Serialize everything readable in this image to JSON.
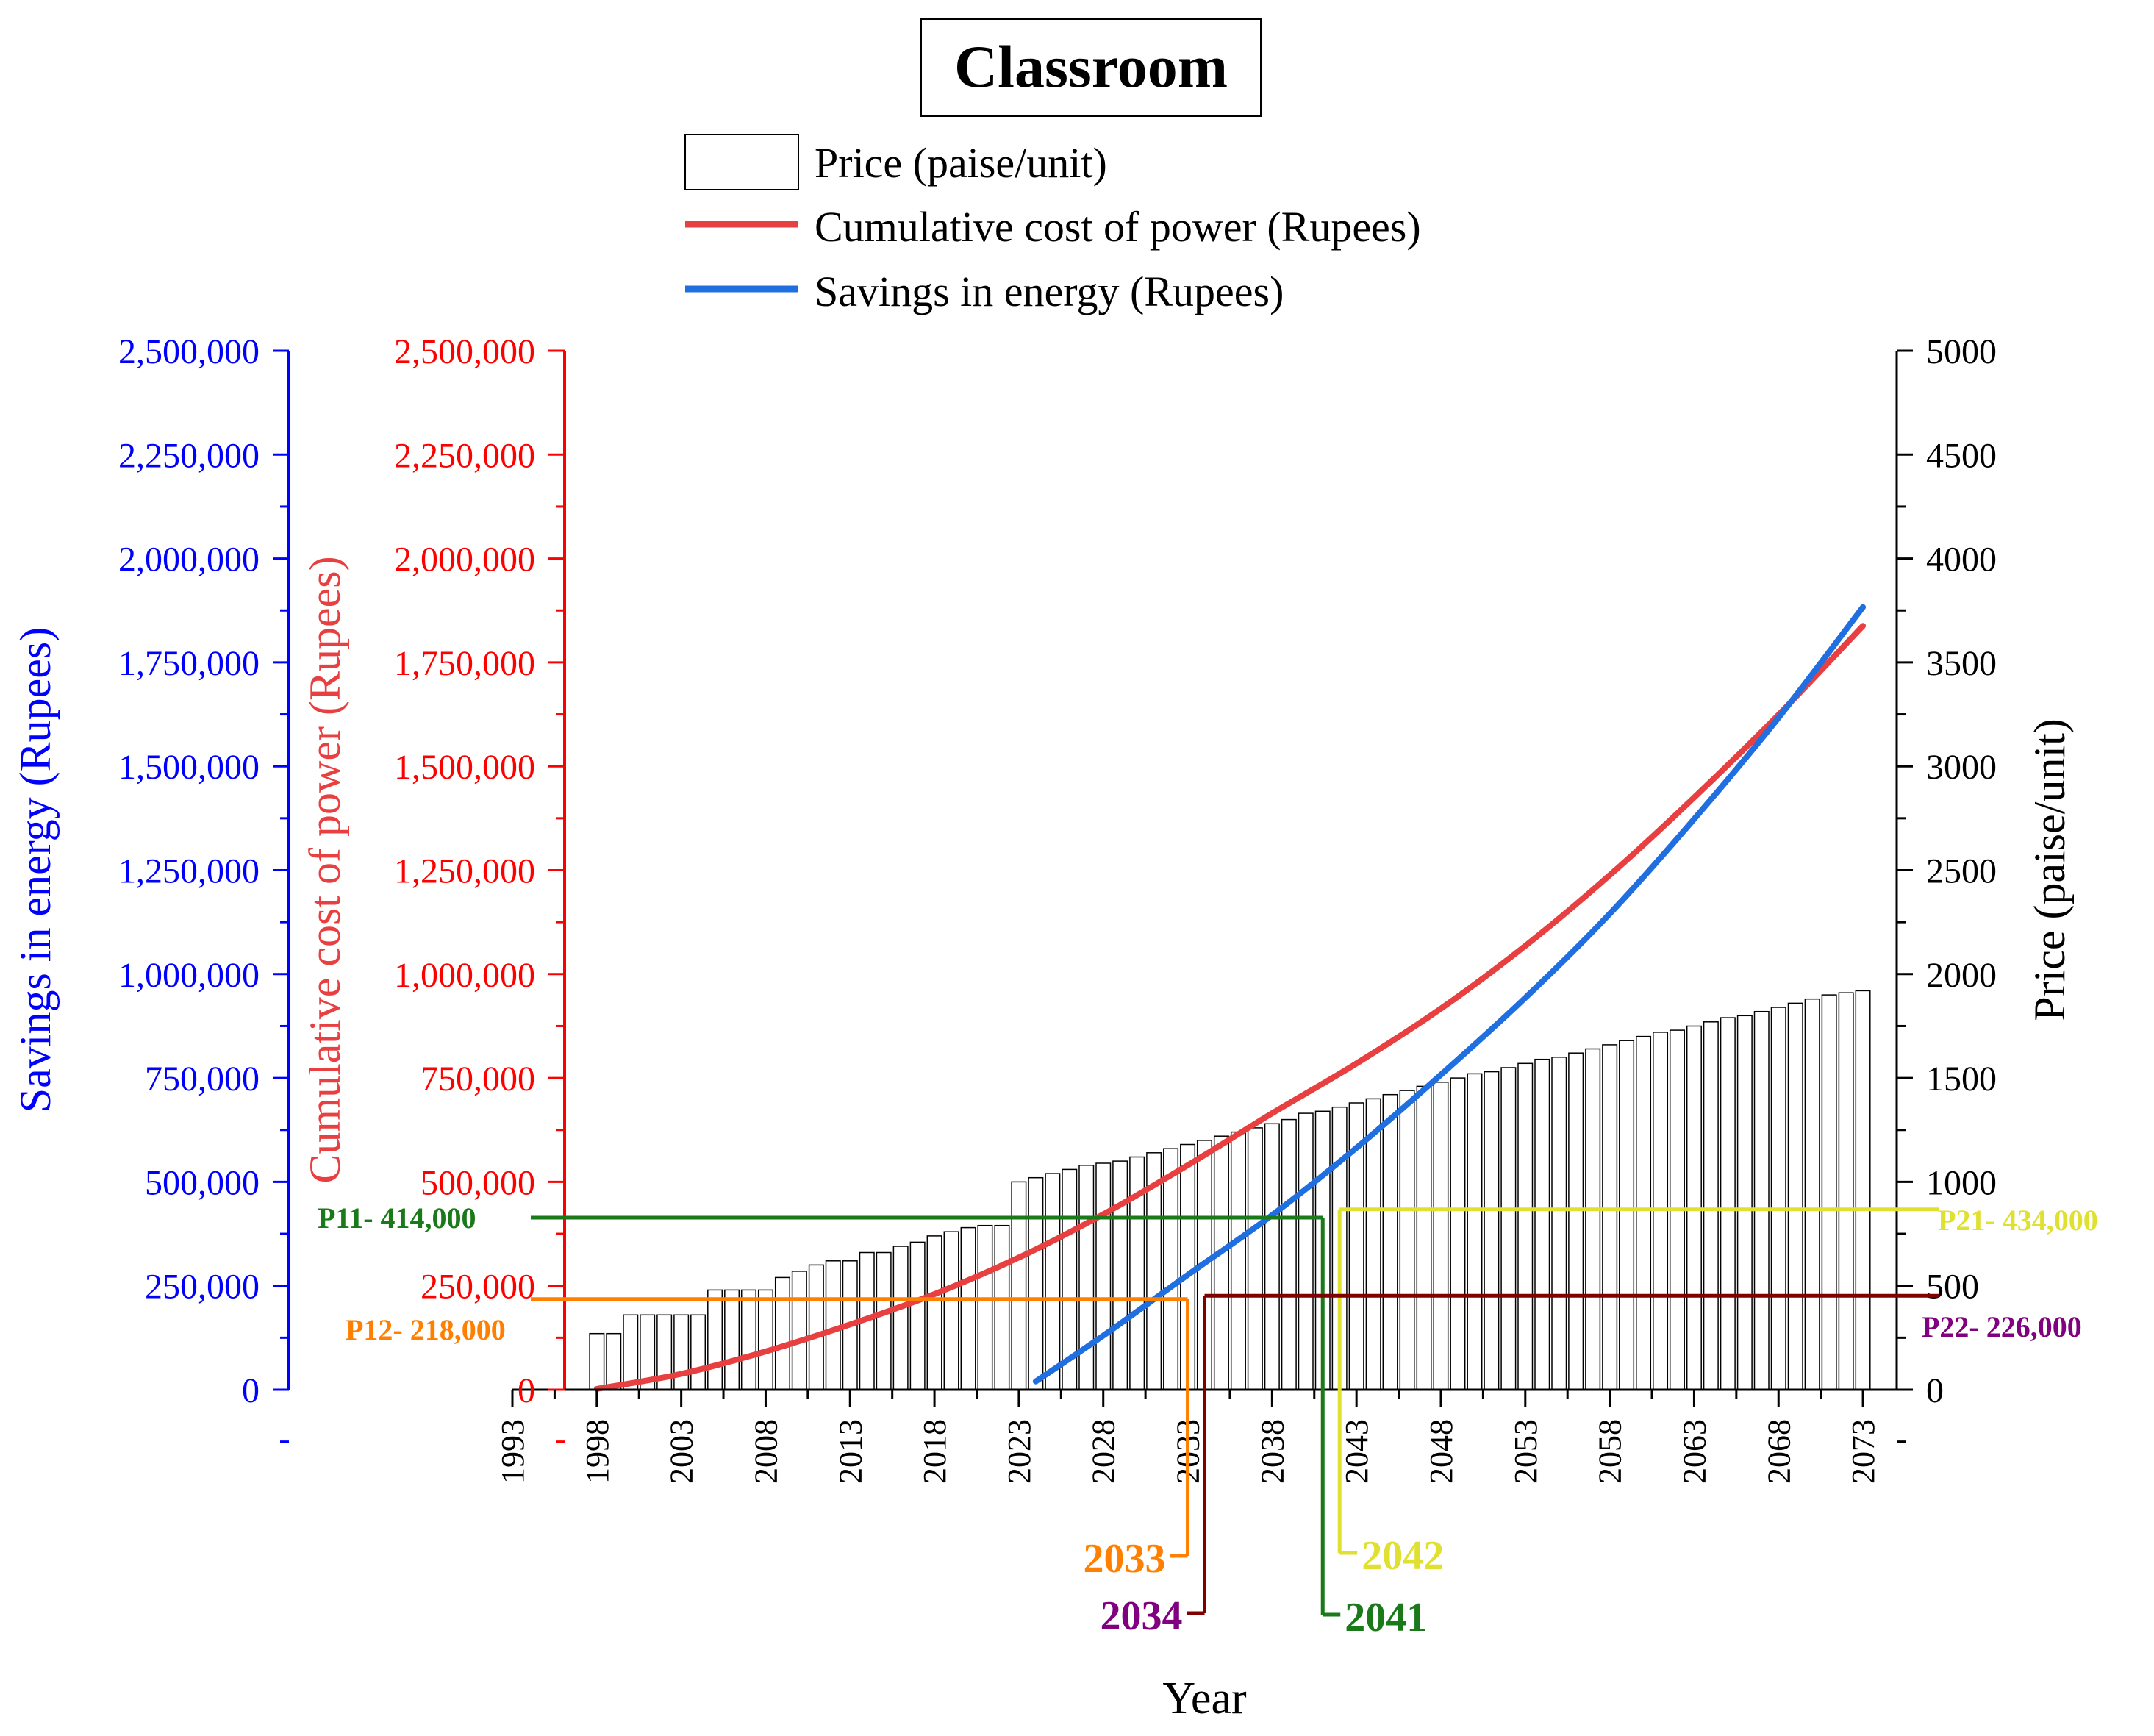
{
  "chart_data": {
    "type": "bar+line",
    "title": "Classroom",
    "xlabel": "Year",
    "xlim": [
      1993,
      2075
    ],
    "x_ticks": [
      "1993",
      "1998",
      "2003",
      "2008",
      "2013",
      "2018",
      "2023",
      "2028",
      "2033",
      "2038",
      "2043",
      "2048",
      "2053",
      "2058",
      "2063",
      "2068",
      "2073"
    ],
    "axes": {
      "savings": {
        "label": "Savings in energy (Rupees)",
        "color": "#0000ff",
        "ylim": [
          0,
          2500000
        ],
        "ticks": [
          "0",
          "250,000",
          "500,000",
          "750,000",
          "1,000,000",
          "1,250,000",
          "1,500,000",
          "1,750,000",
          "2,000,000",
          "2,250,000",
          "2,500,000"
        ]
      },
      "cost": {
        "label": "Cumulative cost of power (Rupees)",
        "color": "#ff0000",
        "ylim": [
          0,
          2500000
        ],
        "ticks": [
          "0",
          "250,000",
          "500,000",
          "750,000",
          "1,000,000",
          "1,250,000",
          "1,500,000",
          "1,750,000",
          "2,000,000",
          "2,250,000",
          "2,500,000"
        ]
      },
      "price": {
        "label": "Price (paise/unit)",
        "color": "#000000",
        "ylim": [
          0,
          5000
        ],
        "ticks": [
          "0",
          "500",
          "1000",
          "1500",
          "2000",
          "2500",
          "3000",
          "3500",
          "4000",
          "4500",
          "5000"
        ]
      }
    },
    "legend": [
      {
        "key": "price",
        "label": "Price (paise/unit)",
        "style": "box"
      },
      {
        "key": "cost",
        "label": "Cumulative cost of power (Rupees)",
        "style": "line",
        "color": "#e84040"
      },
      {
        "key": "savings",
        "label": "Savings in energy (Rupees)",
        "style": "line",
        "color": "#1f6fe0"
      }
    ],
    "price_bars": {
      "years": [
        1998,
        1999,
        2000,
        2001,
        2002,
        2003,
        2004,
        2005,
        2006,
        2007,
        2008,
        2009,
        2010,
        2011,
        2012,
        2013,
        2014,
        2015,
        2016,
        2017,
        2018,
        2019,
        2020,
        2021,
        2022,
        2023,
        2024,
        2025,
        2026,
        2027,
        2028,
        2029,
        2030,
        2031,
        2032,
        2033,
        2034,
        2035,
        2036,
        2037,
        2038,
        2039,
        2040,
        2041,
        2042,
        2043,
        2044,
        2045,
        2046,
        2047,
        2048,
        2049,
        2050,
        2051,
        2052,
        2053,
        2054,
        2055,
        2056,
        2057,
        2058,
        2059,
        2060,
        2061,
        2062,
        2063,
        2064,
        2065,
        2066,
        2067,
        2068,
        2069,
        2070,
        2071,
        2072,
        2073
      ],
      "values": [
        270,
        270,
        360,
        360,
        360,
        360,
        360,
        480,
        480,
        480,
        480,
        540,
        570,
        600,
        620,
        620,
        660,
        660,
        690,
        710,
        740,
        760,
        780,
        790,
        790,
        1000,
        1020,
        1040,
        1060,
        1080,
        1090,
        1100,
        1120,
        1140,
        1160,
        1180,
        1200,
        1220,
        1240,
        1260,
        1280,
        1300,
        1330,
        1340,
        1360,
        1380,
        1400,
        1420,
        1440,
        1460,
        1480,
        1500,
        1520,
        1530,
        1550,
        1570,
        1590,
        1600,
        1620,
        1640,
        1660,
        1680,
        1700,
        1720,
        1730,
        1750,
        1770,
        1790,
        1800,
        1820,
        1840,
        1860,
        1880,
        1900,
        1910,
        1920
      ]
    },
    "series": [
      {
        "name": "Cumulative cost of power (Rupees)",
        "color": "#e84040",
        "x": [
          1998,
          2003,
          2008,
          2013,
          2018,
          2023,
          2028,
          2033,
          2038,
          2043,
          2048,
          2053,
          2058,
          2063,
          2068,
          2073
        ],
        "values": [
          2000,
          38000,
          92000,
          157000,
          230000,
          318000,
          422000,
          540000,
          665000,
          785000,
          917000,
          1068000,
          1238000,
          1425000,
          1624000,
          1838000
        ]
      },
      {
        "name": "Savings in energy (Rupees)",
        "color": "#1f6fe0",
        "x": [
          2024,
          2028,
          2033,
          2038,
          2043,
          2048,
          2053,
          2058,
          2063,
          2068,
          2073
        ],
        "values": [
          20000,
          130000,
          276000,
          420000,
          582000,
          758000,
          943000,
          1145000,
          1373000,
          1617000,
          1883000
        ]
      }
    ],
    "annotations": [
      {
        "label": "P11- 414,000",
        "value": 414000,
        "axis": "savings",
        "year_label": "2041",
        "year": 2041,
        "color": "#1a7a1a",
        "side": "left"
      },
      {
        "label": "P12- 218,000",
        "value": 218000,
        "axis": "cost",
        "year_label": "2033",
        "year": 2033,
        "color": "#ff8000",
        "side": "left"
      },
      {
        "label": "P21- 434,000",
        "value": 434000,
        "axis": "savings",
        "year_label": "2042",
        "year": 2042,
        "color": "#e0e030",
        "side": "right"
      },
      {
        "label": "P22- 226,000",
        "value": 226000,
        "axis": "cost",
        "year_label": "2034",
        "year": 2034,
        "color": "#800000",
        "label_color": "#800080",
        "side": "right"
      }
    ]
  }
}
